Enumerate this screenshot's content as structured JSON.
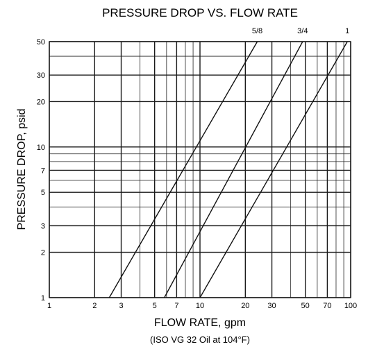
{
  "chart_data": {
    "type": "line",
    "title": "PRESSURE DROP VS. FLOW RATE",
    "xlabel": "FLOW RATE, gpm",
    "xlabel_note": "(ISO VG 32 Oil at 104°F)",
    "ylabel": "PRESSURE DROP, psid",
    "xscale": "log",
    "yscale": "log",
    "xlim": [
      1,
      100
    ],
    "ylim": [
      1,
      50
    ],
    "grid": true,
    "x_ticks": [
      1,
      2,
      3,
      5,
      7,
      10,
      20,
      30,
      50,
      70,
      100
    ],
    "x_tick_labels": [
      "1",
      "2",
      "3",
      "5",
      "7",
      "10",
      "20",
      "30",
      "50",
      "70",
      "100"
    ],
    "y_ticks": [
      1,
      2,
      3,
      5,
      7,
      10,
      20,
      30,
      50
    ],
    "y_tick_labels": [
      "1",
      "2",
      "3",
      "5",
      "7",
      "10",
      "20",
      "30",
      "50"
    ],
    "x_gridlines": [
      1,
      2,
      3,
      4,
      5,
      6,
      7,
      8,
      9,
      10,
      20,
      30,
      40,
      50,
      60,
      70,
      80,
      90,
      100
    ],
    "y_gridlines": [
      1,
      2,
      3,
      4,
      5,
      6,
      7,
      8,
      9,
      10,
      20,
      30,
      40,
      50
    ],
    "series": [
      {
        "name": "5/8",
        "x": [
          2.5,
          24
        ],
        "y": [
          1,
          50
        ]
      },
      {
        "name": "3/4",
        "x": [
          5.8,
          48
        ],
        "y": [
          1,
          50
        ]
      },
      {
        "name": "1",
        "x": [
          10,
          95
        ],
        "y": [
          1,
          50
        ]
      }
    ]
  }
}
